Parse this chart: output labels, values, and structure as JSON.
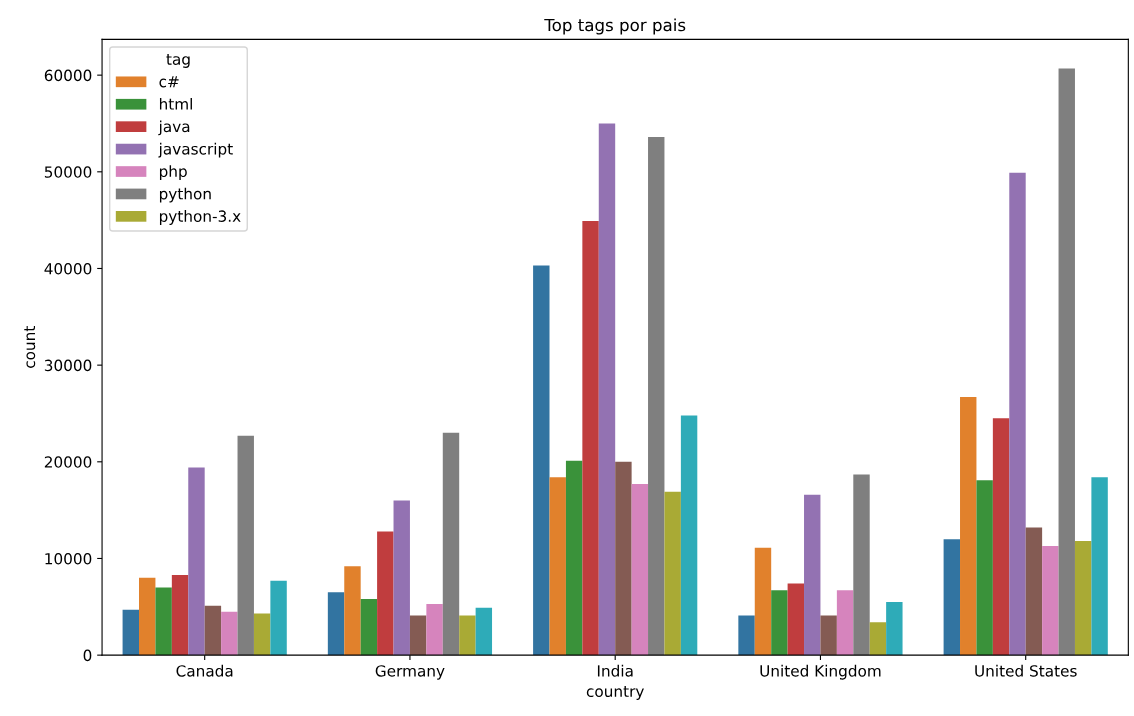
{
  "chart_data": {
    "type": "bar",
    "title": "Top tags por pais",
    "xlabel": "country",
    "ylabel": "count",
    "legend_title": "tag",
    "legend": "top left",
    "grid": false,
    "categories": [
      "Canada",
      "Germany",
      "India",
      "United Kingdom",
      "United States"
    ],
    "ylim": [
      0,
      63700
    ],
    "yticks": [
      0,
      10000,
      20000,
      30000,
      40000,
      50000,
      60000
    ],
    "series": [
      {
        "color": "#3274a1",
        "values": [
          4700,
          6500,
          40300,
          4100,
          12000
        ]
      },
      {
        "name": "c#",
        "color": "#e1812c",
        "values": [
          8000,
          9200,
          18400,
          11100,
          26700
        ]
      },
      {
        "name": "html",
        "color": "#3a923a",
        "values": [
          7000,
          5800,
          20100,
          6700,
          18100
        ]
      },
      {
        "name": "java",
        "color": "#c03d3e",
        "values": [
          8300,
          12800,
          44900,
          7400,
          24500
        ]
      },
      {
        "name": "javascript",
        "color": "#9372b2",
        "values": [
          19400,
          16000,
          55000,
          16600,
          49900
        ]
      },
      {
        "color": "#845b53",
        "values": [
          5100,
          4100,
          20000,
          4100,
          13200
        ]
      },
      {
        "name": "php",
        "color": "#d684bd",
        "values": [
          4500,
          5300,
          17700,
          6700,
          11300
        ]
      },
      {
        "name": "python",
        "color": "#7f7f7f",
        "values": [
          22700,
          23000,
          53600,
          18700,
          60700
        ]
      },
      {
        "name": "python-3.x",
        "color": "#a9aa35",
        "values": [
          4300,
          4100,
          16900,
          3400,
          11800
        ]
      },
      {
        "color": "#2eabb8",
        "values": [
          7700,
          4900,
          24800,
          5500,
          18400
        ]
      }
    ]
  }
}
